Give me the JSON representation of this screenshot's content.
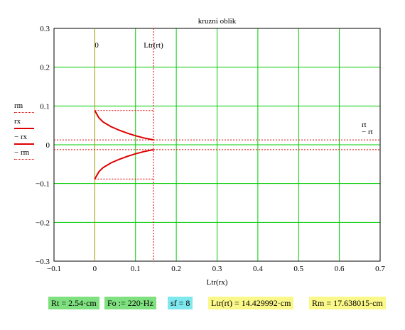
{
  "chart_data": {
    "type": "line",
    "title": "kruzni oblik",
    "xlabel": "Ltr(rx)",
    "ylabel": "",
    "xlim": [
      -0.1,
      0.7
    ],
    "ylim": [
      -0.3,
      0.3
    ],
    "x_ticks": [
      "-0.1",
      "0",
      "0.1",
      "0.2",
      "0.3",
      "0.4",
      "0.5",
      "0.6",
      "0.7"
    ],
    "y_ticks": [
      "0.3",
      "0.2",
      "0.1",
      "0",
      "-0.1",
      "-0.2",
      "-0.3"
    ],
    "grid": true,
    "vertical_markers": [
      {
        "label": "0",
        "x": 0
      },
      {
        "label": "Ltr(rt)",
        "x": 0.144
      }
    ],
    "legend": [
      "rm",
      "rx",
      "− rx",
      "− rm"
    ],
    "right_labels": [
      "rt",
      "− rt"
    ],
    "series": [
      {
        "name": "rm",
        "style": "dotted",
        "x": [
          0,
          0.144
        ],
        "y": [
          0.0882,
          0.0882
        ]
      },
      {
        "name": "rx",
        "style": "solid",
        "x": [
          0,
          0.01,
          0.02,
          0.04,
          0.06,
          0.08,
          0.1,
          0.12,
          0.144
        ],
        "y": [
          0.0882,
          0.0697,
          0.0591,
          0.0466,
          0.0375,
          0.0298,
          0.0233,
          0.0177,
          0.0127
        ]
      },
      {
        "name": "− rx",
        "style": "solid",
        "x": [
          0,
          0.01,
          0.02,
          0.04,
          0.06,
          0.08,
          0.1,
          0.12,
          0.144
        ],
        "y": [
          -0.0882,
          -0.0697,
          -0.0591,
          -0.0466,
          -0.0375,
          -0.0298,
          -0.0233,
          -0.0177,
          -0.0127
        ]
      },
      {
        "name": "− rm",
        "style": "dotted",
        "x": [
          0,
          0.144
        ],
        "y": [
          -0.0882,
          -0.0882
        ]
      },
      {
        "name": "rt",
        "style": "dotted",
        "x": [
          -0.1,
          0.7
        ],
        "y": [
          0.0127,
          0.0127
        ]
      },
      {
        "name": "− rt",
        "style": "dotted",
        "x": [
          -0.1,
          0.7
        ],
        "y": [
          -0.0127,
          -0.0127
        ]
      }
    ],
    "colors": {
      "curve": "#dd0000",
      "grid": "#00cc00",
      "marker0": "#999900"
    }
  },
  "parameters": {
    "rt": "Rt = 2.54·cm",
    "fo": "Fo := 220·Hz",
    "sf": "sf = 8",
    "ltr": "Ltr(rt) = 14.429992·cm",
    "rm": "Rm = 17.638015·cm"
  }
}
